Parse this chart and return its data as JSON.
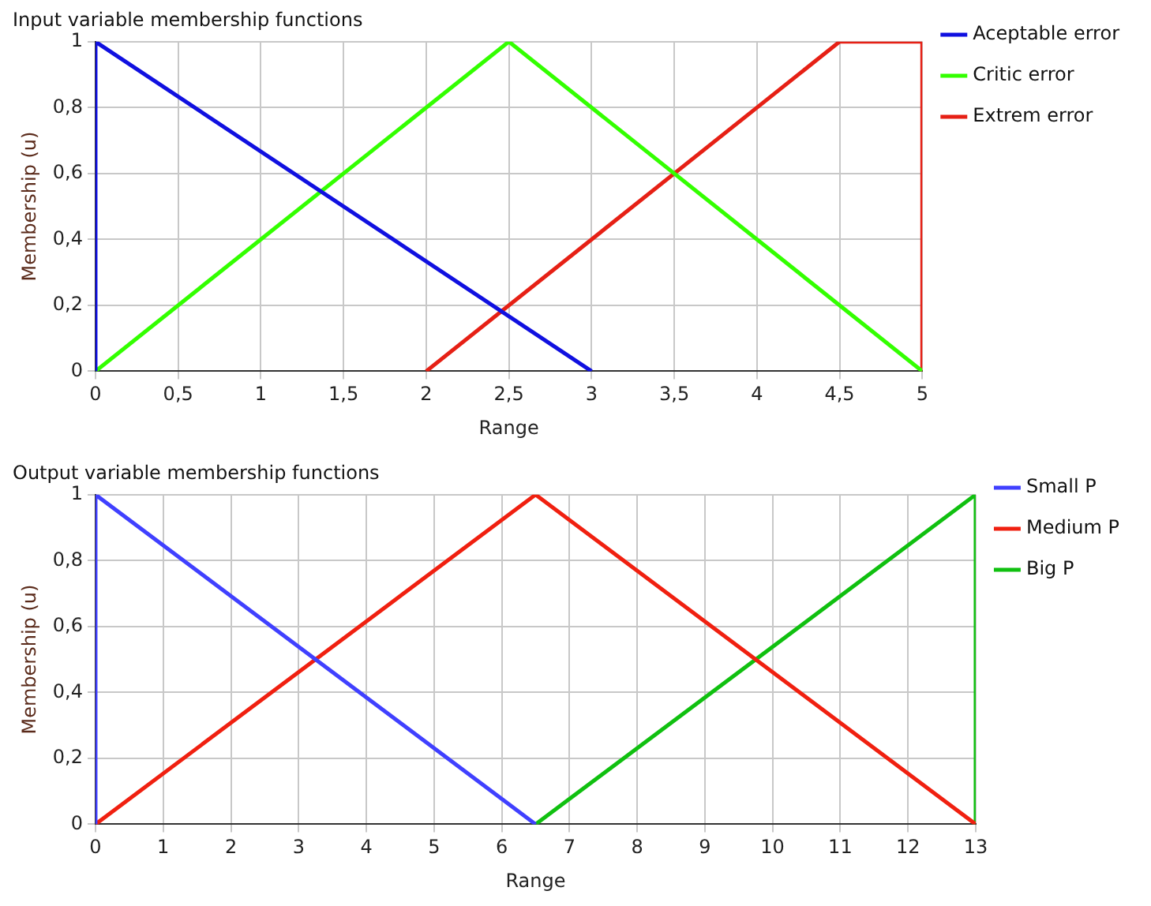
{
  "chart_data": [
    {
      "type": "line",
      "title": "Input variable membership functions",
      "xlabel": "Range",
      "ylabel": "Membership (u)",
      "xlim": [
        0,
        5
      ],
      "ylim": [
        0,
        1
      ],
      "xticks": [
        {
          "value": 0,
          "label": "0"
        },
        {
          "value": 0.5,
          "label": "0,5"
        },
        1,
        {
          "value": 1.5,
          "label": "1,5"
        },
        2,
        {
          "value": 2.5,
          "label": "2,5"
        },
        3,
        {
          "value": 3.5,
          "label": "3,5"
        },
        4,
        {
          "value": 4.5,
          "label": "4,5"
        },
        5
      ],
      "yticks": [
        {
          "value": 0,
          "label": "0"
        },
        {
          "value": 0.2,
          "label": "0,2"
        },
        {
          "value": 0.4,
          "label": "0,4"
        },
        {
          "value": 0.6,
          "label": "0,6"
        },
        {
          "value": 0.8,
          "label": "0,8"
        },
        1
      ],
      "grid": true,
      "legend": "right",
      "marker": "none",
      "line_style": "solid",
      "series": [
        {
          "name": "Aceptable error",
          "color": "#1010e0",
          "x": [
            0,
            0,
            3
          ],
          "values": [
            0,
            1,
            0
          ]
        },
        {
          "name": "Critic error",
          "color": "#33ff00",
          "x": [
            0,
            2.5,
            5
          ],
          "values": [
            0,
            1,
            0
          ]
        },
        {
          "name": "Extrem error",
          "color": "#e62015",
          "x": [
            2,
            4.5,
            5,
            5
          ],
          "values": [
            0,
            1,
            1,
            0
          ]
        }
      ]
    },
    {
      "type": "line",
      "title": "Output variable membership functions",
      "xlabel": "Range",
      "ylabel": "Membership (u)",
      "xlim": [
        0,
        13
      ],
      "ylim": [
        0,
        1
      ],
      "xticks": [
        {
          "value": 0,
          "label": "0"
        },
        1,
        2,
        3,
        4,
        5,
        6,
        7,
        8,
        9,
        10,
        11,
        12,
        13
      ],
      "yticks": [
        {
          "value": 0,
          "label": "0"
        },
        {
          "value": 0.2,
          "label": "0,2"
        },
        {
          "value": 0.4,
          "label": "0,4"
        },
        {
          "value": 0.6,
          "label": "0,6"
        },
        {
          "value": 0.8,
          "label": "0,8"
        },
        1
      ],
      "grid": true,
      "legend": "right",
      "marker": "none",
      "line_style": "solid",
      "series": [
        {
          "name": "Small P",
          "color": "#4040ff",
          "x": [
            0,
            0,
            6.5
          ],
          "values": [
            0,
            1,
            0
          ]
        },
        {
          "name": "Medium P",
          "color": "#f02010",
          "x": [
            0,
            6.5,
            13
          ],
          "values": [
            0,
            1,
            0
          ]
        },
        {
          "name": "Big P",
          "color": "#10c010",
          "x": [
            6.5,
            13,
            13
          ],
          "values": [
            0,
            1,
            0
          ]
        }
      ]
    }
  ]
}
